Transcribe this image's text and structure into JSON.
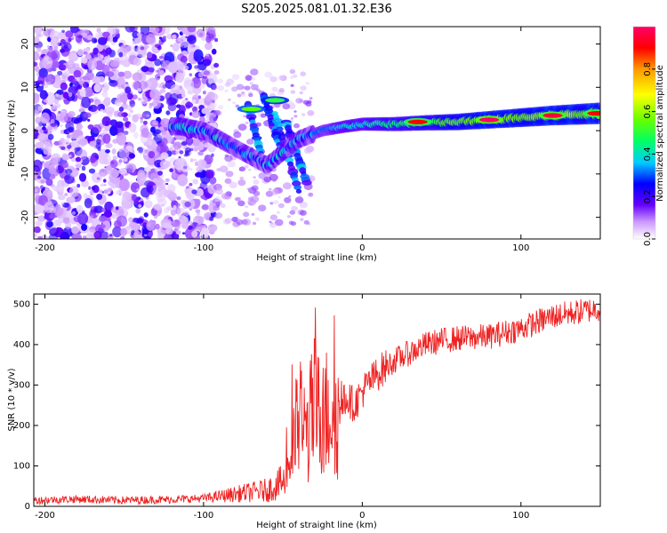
{
  "page_title": "S205.2025.081.01.32.E36",
  "chart_data": [
    {
      "type": "heatmap",
      "panel": "top",
      "title": "S205.2025.081.01.32.E36",
      "xlabel": "Height of straight line (km)",
      "ylabel": "Frequency (Hz)",
      "xlim": [
        -207,
        150
      ],
      "ylim": [
        -25,
        24
      ],
      "xticks": [
        -200,
        -100,
        0,
        100
      ],
      "yticks": [
        20,
        10,
        0,
        -10,
        -20
      ],
      "colorbar": {
        "label": "Normalized spectral amplitude",
        "range": [
          0,
          1
        ],
        "ticks": [
          0.0,
          0.2,
          0.4,
          0.6,
          0.8
        ],
        "colors": [
          "#ffffff",
          "#cc99ff",
          "#6600ff",
          "#0000ff",
          "#00ccff",
          "#00ff66",
          "#66ff00",
          "#ffff00",
          "#ff9900",
          "#ff0000",
          "#ff0066"
        ]
      },
      "ridge": {
        "description": "dominant frequency ridge",
        "x": [
          -115,
          -100,
          -85,
          -70,
          -60,
          -40,
          -25,
          -10,
          0,
          20,
          40,
          60,
          80,
          100,
          120,
          150
        ],
        "y": [
          1,
          0,
          -3,
          -6,
          -8,
          -2,
          0,
          1,
          1.5,
          1.5,
          1.8,
          2,
          2.5,
          3,
          3.5,
          4
        ]
      },
      "hotspots": [
        {
          "x": -70,
          "y": 5,
          "amp": 0.55
        },
        {
          "x": -55,
          "y": 7,
          "amp": 0.5
        },
        {
          "x": 35,
          "y": 2,
          "amp": 0.9
        },
        {
          "x": 80,
          "y": 2.5,
          "amp": 1.0
        },
        {
          "x": 120,
          "y": 3.5,
          "amp": 0.95
        },
        {
          "x": 148,
          "y": 4,
          "amp": 0.9
        }
      ]
    },
    {
      "type": "line",
      "panel": "bottom",
      "xlabel": "Height of straight line (km)",
      "ylabel": "SNR (10 * v/v)",
      "xlim": [
        -207,
        150
      ],
      "ylim": [
        0,
        525
      ],
      "xticks": [
        -200,
        -100,
        0,
        100
      ],
      "yticks": [
        0,
        100,
        200,
        300,
        400,
        500
      ],
      "series": [
        {
          "name": "SNR",
          "color": "#ee2222",
          "x": [
            -207,
            -180,
            -150,
            -120,
            -100,
            -80,
            -60,
            -50,
            -45,
            -40,
            -35,
            -30,
            -25,
            -20,
            -15,
            -10,
            -5,
            0,
            10,
            20,
            30,
            40,
            50,
            60,
            80,
            100,
            120,
            150
          ],
          "y": [
            15,
            18,
            15,
            17,
            20,
            30,
            40,
            60,
            120,
            220,
            180,
            250,
            200,
            260,
            230,
            270,
            250,
            285,
            330,
            360,
            380,
            400,
            410,
            415,
            420,
            440,
            470,
            490
          ]
        }
      ]
    }
  ]
}
